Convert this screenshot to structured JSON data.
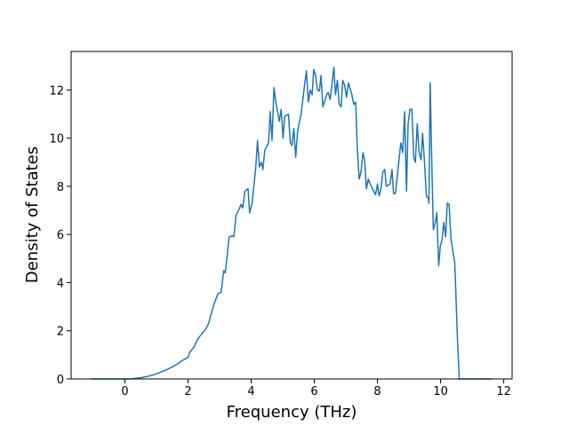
{
  "chart_data": {
    "type": "line",
    "xlabel": "Frequency (THz)",
    "ylabel": "Density of States",
    "color": "#1f77b4",
    "grid": false,
    "xlim": [
      -1.705,
      12.265
    ],
    "ylim": [
      0,
      13.6
    ],
    "xticks": [
      0,
      2,
      4,
      6,
      8,
      10,
      12
    ],
    "yticks": [
      0,
      2,
      4,
      6,
      8,
      10,
      12
    ],
    "x": [
      -1.07,
      0.2,
      0.3,
      0.5,
      0.7,
      0.9,
      1.1,
      1.3,
      1.5,
      1.7,
      1.8,
      2.0,
      2.05,
      2.2,
      2.3,
      2.45,
      2.55,
      2.65,
      2.75,
      2.85,
      2.95,
      3.05,
      3.13,
      3.18,
      3.3,
      3.4,
      3.45,
      3.52,
      3.6,
      3.68,
      3.73,
      3.8,
      3.9,
      3.95,
      4.03,
      4.1,
      4.15,
      4.2,
      4.26,
      4.32,
      4.37,
      4.43,
      4.55,
      4.6,
      4.66,
      4.72,
      4.78,
      4.89,
      4.95,
      5.01,
      5.06,
      5.18,
      5.24,
      5.29,
      5.35,
      5.41,
      5.47,
      5.58,
      5.7,
      5.75,
      5.81,
      5.87,
      5.93,
      5.98,
      6.04,
      6.1,
      6.16,
      6.21,
      6.27,
      6.39,
      6.44,
      6.5,
      6.62,
      6.67,
      6.73,
      6.79,
      6.85,
      6.9,
      6.96,
      7.02,
      7.08,
      7.19,
      7.25,
      7.31,
      7.36,
      7.42,
      7.48,
      7.54,
      7.59,
      7.65,
      7.71,
      7.77,
      7.88,
      7.94,
      8.0,
      8.05,
      8.11,
      8.17,
      8.23,
      8.28,
      8.4,
      8.46,
      8.51,
      8.57,
      8.69,
      8.74,
      8.8,
      8.86,
      8.92,
      8.97,
      9.03,
      9.09,
      9.15,
      9.2,
      9.26,
      9.32,
      9.38,
      9.43,
      9.49,
      9.55,
      9.61,
      9.63,
      9.67,
      9.72,
      9.77,
      9.83,
      9.88,
      9.94,
      9.99,
      10.05,
      10.1,
      10.16,
      10.21,
      10.27,
      10.33,
      10.45,
      10.53,
      10.59,
      11.63
    ],
    "values": [
      0,
      0,
      0.02,
      0.05,
      0.1,
      0.17,
      0.27,
      0.37,
      0.5,
      0.65,
      0.75,
      0.9,
      1.1,
      1.35,
      1.65,
      1.9,
      2.05,
      2.3,
      2.8,
      3.2,
      3.55,
      3.6,
      4.5,
      4.4,
      5.9,
      5.95,
      5.9,
      6.8,
      7.0,
      7.25,
      7.1,
      7.8,
      7.9,
      6.9,
      7.3,
      8.2,
      8.9,
      9.9,
      8.8,
      9.0,
      8.7,
      9.5,
      9.8,
      11.1,
      9.9,
      12.1,
      11.5,
      10.7,
      11.2,
      10.0,
      10.9,
      11.0,
      9.8,
      9.7,
      10.4,
      9.2,
      10.3,
      11.0,
      12.3,
      12.8,
      11.5,
      12.0,
      11.8,
      12.85,
      12.6,
      12.0,
      11.95,
      12.6,
      11.3,
      11.8,
      11.9,
      11.6,
      12.95,
      11.8,
      12.4,
      11.4,
      11.3,
      12.4,
      12.2,
      11.7,
      12.3,
      11.8,
      11.4,
      11.5,
      9.6,
      8.3,
      8.6,
      9.4,
      9.1,
      7.9,
      8.3,
      8.1,
      7.8,
      7.65,
      8.1,
      7.6,
      7.9,
      8.6,
      8.7,
      8.0,
      8.1,
      8.7,
      7.7,
      7.7,
      9.2,
      9.8,
      9.4,
      11.1,
      7.8,
      10.6,
      11.2,
      11.2,
      9.2,
      9.0,
      10.6,
      9.4,
      9.1,
      10.2,
      9.0,
      7.6,
      7.5,
      7.3,
      12.3,
      9.0,
      6.2,
      6.5,
      6.9,
      4.7,
      5.5,
      5.8,
      6.5,
      5.9,
      7.3,
      7.25,
      5.8,
      4.8,
      1.8,
      0,
      0
    ]
  }
}
